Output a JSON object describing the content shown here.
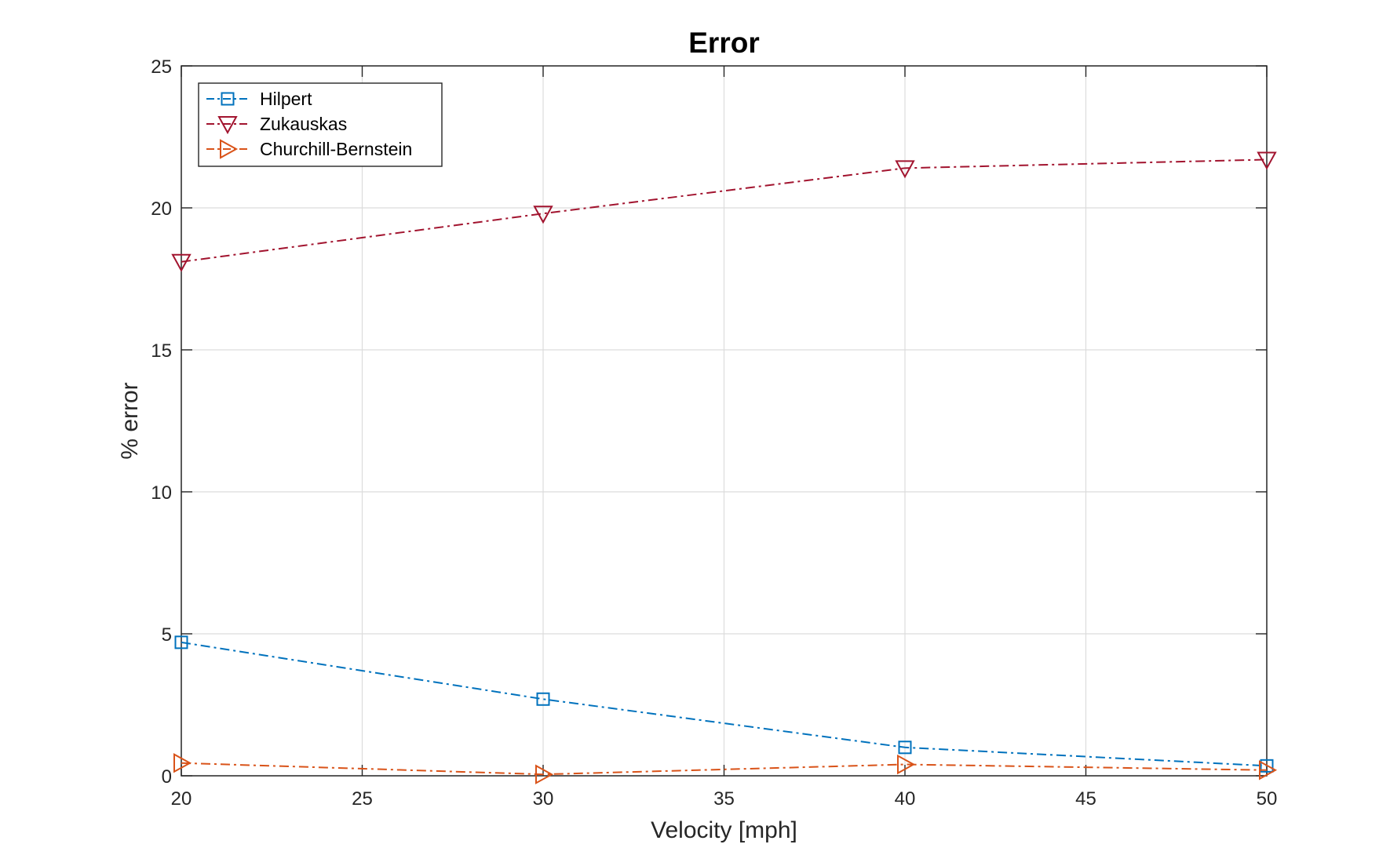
{
  "chart_data": {
    "type": "line",
    "title": "Error",
    "xlabel": "Velocity [mph]",
    "ylabel": "% error",
    "xlim": [
      20,
      50
    ],
    "ylim": [
      0,
      25
    ],
    "xticks": [
      20,
      25,
      30,
      35,
      40,
      45,
      50
    ],
    "yticks": [
      0,
      5,
      10,
      15,
      20,
      25
    ],
    "grid": true,
    "legend_position": "top-left",
    "x": [
      20,
      30,
      40,
      50
    ],
    "series": [
      {
        "name": "Hilpert",
        "values": [
          4.7,
          2.7,
          1.0,
          0.35
        ],
        "color": "#0072BD",
        "marker": "square",
        "line_style": "dash-dot"
      },
      {
        "name": "Zukauskas",
        "values": [
          18.1,
          19.8,
          21.4,
          21.7
        ],
        "color": "#A2142F",
        "marker": "triangle-down",
        "line_style": "dash-dot"
      },
      {
        "name": "Churchill-Bernstein",
        "values": [
          0.45,
          0.05,
          0.4,
          0.2
        ],
        "color": "#D95319",
        "marker": "triangle-right",
        "line_style": "dash-dot"
      }
    ]
  }
}
